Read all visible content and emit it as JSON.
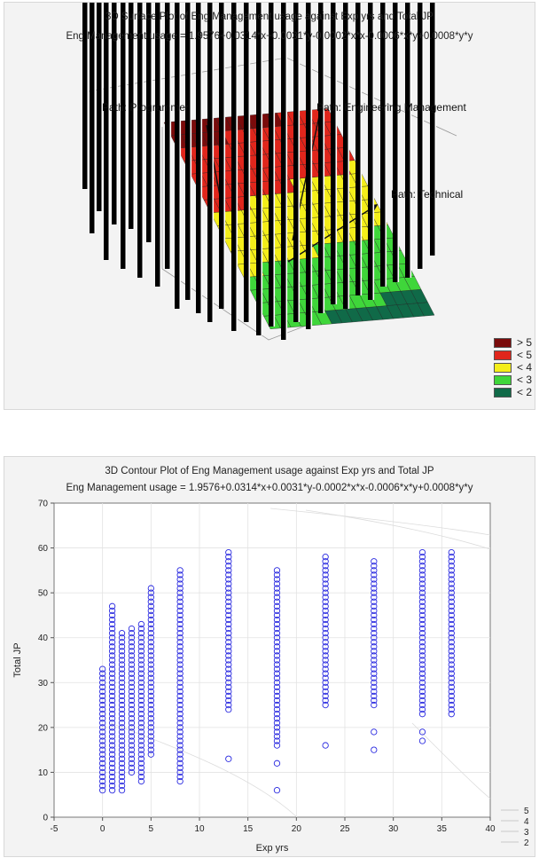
{
  "chart_data": [
    {
      "type": "surface",
      "title": "3D Surface Plot of Eng Management usage against Exp yrs and Total JP",
      "subtitle": "Eng Management usage = 1.9576+0.0314*x+0.0031*y-0.0002*x*x-0.0006*x*y+0.0008*y*y",
      "annotations": [
        "Path: Programmer",
        "Path: Engineering Management",
        "Path: Technical"
      ],
      "legend": {
        "placement": "bottom-right",
        "items": [
          {
            "label": "> 5",
            "color": "#7a0b0b"
          },
          {
            "label": "< 5",
            "color": "#e0261c"
          },
          {
            "label": "< 4",
            "color": "#f4ee1a"
          },
          {
            "label": "< 3",
            "color": "#3fd63a"
          },
          {
            "label": "< 2",
            "color": "#106a48"
          }
        ]
      }
    },
    {
      "type": "scatter",
      "title": "3D Contour Plot of Eng Management usage against Exp yrs and Total JP",
      "subtitle": "Eng Management usage = 1.9576+0.0314*x+0.0031*y-0.0002*x*x-0.0006*x*y+0.0008*y*y",
      "xlabel": "Exp yrs",
      "ylabel": "Total JP",
      "xlim": [
        -5,
        40
      ],
      "ylim": [
        0,
        70
      ],
      "xticks": [
        -5,
        0,
        5,
        10,
        15,
        20,
        25,
        30,
        35,
        40
      ],
      "yticks": [
        0,
        10,
        20,
        30,
        40,
        50,
        60,
        70
      ],
      "grid": true,
      "contour_legend": [
        "5",
        "4",
        "3",
        "2"
      ],
      "marker_color": "#2a2ae0",
      "columns": [
        {
          "x": 0,
          "ymin": 6,
          "ymax": 33
        },
        {
          "x": 1,
          "ymin": 6,
          "ymax": 47
        },
        {
          "x": 2,
          "ymin": 6,
          "ymax": 41
        },
        {
          "x": 3,
          "ymin": 10,
          "ymax": 42
        },
        {
          "x": 4,
          "ymin": 8,
          "ymax": 43
        },
        {
          "x": 5,
          "ymin": 14,
          "ymax": 51
        },
        {
          "x": 8,
          "ymin": 8,
          "ymax": 55
        },
        {
          "x": 13,
          "ymin": 24,
          "ymax": 59
        },
        {
          "x": 18,
          "ymin": 16,
          "ymax": 55
        },
        {
          "x": 23,
          "ymin": 25,
          "ymax": 58
        },
        {
          "x": 28,
          "ymin": 25,
          "ymax": 57
        },
        {
          "x": 33,
          "ymin": 23,
          "ymax": 59
        },
        {
          "x": 36,
          "ymin": 23,
          "ymax": 59
        }
      ],
      "outliers": [
        {
          "x": 13,
          "y": 13
        },
        {
          "x": 18,
          "y": 6
        },
        {
          "x": 18,
          "y": 12
        },
        {
          "x": 23,
          "y": 16
        },
        {
          "x": 28,
          "y": 15
        },
        {
          "x": 28,
          "y": 19
        },
        {
          "x": 33,
          "y": 17
        },
        {
          "x": 33,
          "y": 19
        }
      ]
    }
  ]
}
